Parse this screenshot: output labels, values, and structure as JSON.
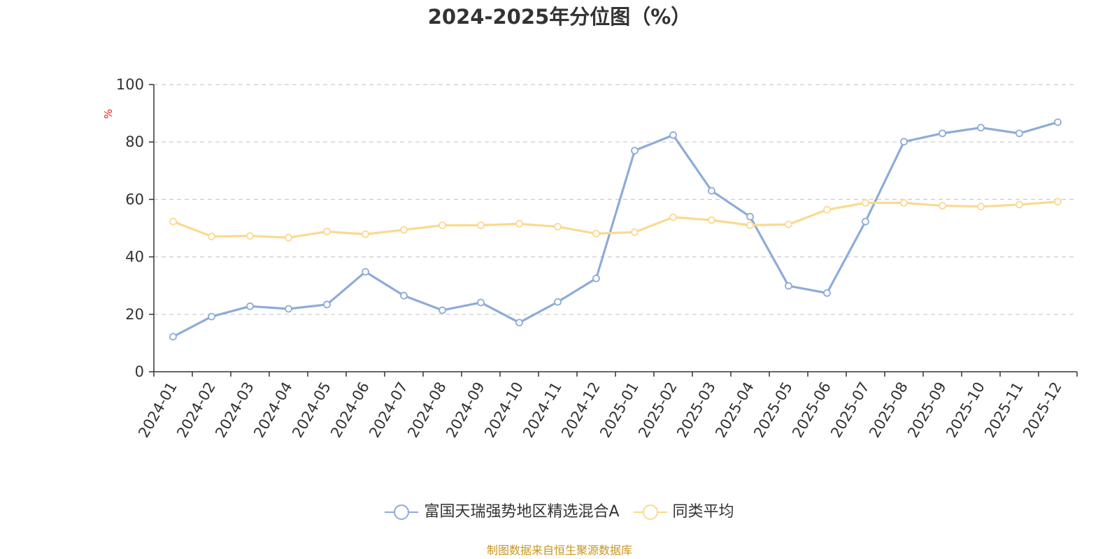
{
  "colors": {
    "series_1": "#8eabd9",
    "series_2": "#fbd98e",
    "grid": "#cccccc",
    "axis": "#333333",
    "ylabel": "#e02020",
    "source": "#c8961e"
  },
  "source_note": "制图数据来自恒生聚源数据库",
  "chart_data": {
    "type": "line",
    "title": "2024-2025年分位图（%）",
    "xlabel": "",
    "ylabel": "%",
    "ylim": [
      0,
      100
    ],
    "yticks": [
      "0",
      "20",
      "40",
      "60",
      "80",
      "100"
    ],
    "grid": true,
    "legend_position": "bottom-center",
    "categories": [
      "2024-01",
      "2024-02",
      "2024-03",
      "2024-04",
      "2024-05",
      "2024-06",
      "2024-07",
      "2024-08",
      "2024-09",
      "2024-10",
      "2024-11",
      "2024-12",
      "2025-01",
      "2025-02",
      "2025-03",
      "2025-04",
      "2025-05",
      "2025-06",
      "2025-07",
      "2025-08",
      "2025-09",
      "2025-10",
      "2025-11",
      "2025-12"
    ],
    "series": [
      {
        "name": "富国天瑞强势地区精选混合A",
        "values": [
          12.2,
          19.2,
          22.8,
          21.9,
          23.4,
          34.8,
          26.5,
          21.4,
          24.1,
          17.1,
          24.3,
          32.5,
          77.0,
          82.4,
          63.0,
          54.0,
          29.9,
          27.4,
          52.3,
          80.1,
          83.0,
          85.0,
          83.0,
          86.9
        ]
      },
      {
        "name": "同类平均",
        "values": [
          52.3,
          47.1,
          47.3,
          46.7,
          48.8,
          47.9,
          49.4,
          51.0,
          51.0,
          51.5,
          50.5,
          48.1,
          48.6,
          53.8,
          52.8,
          51.0,
          51.3,
          56.4,
          58.8,
          58.8,
          57.8,
          57.5,
          58.2,
          59.2
        ]
      }
    ]
  }
}
